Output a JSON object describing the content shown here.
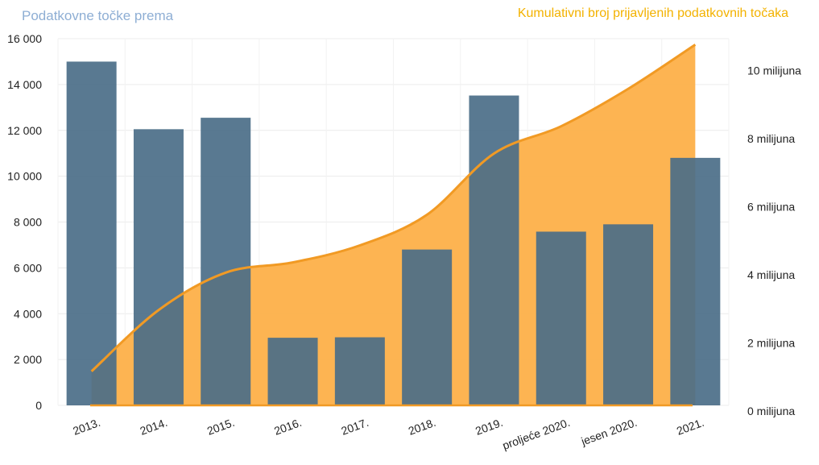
{
  "titles": {
    "left": "Podatkovne točke prema",
    "right": "Kumulativni broj prijavljenih podatkovnih točaka"
  },
  "colors": {
    "bar": "#4b6e88",
    "area": "#fdb049",
    "line": "#f19a24",
    "left_title": "#8eaed4",
    "right_title": "#f3b200"
  },
  "chart_data": {
    "type": "bar",
    "categories": [
      "2013.",
      "2014.",
      "2015.",
      "2016.",
      "2017.",
      "2018.",
      "2019.",
      "proljeće 2020.",
      "jesen 2020.",
      "2021."
    ],
    "series": [
      {
        "type": "bar",
        "axis": "left",
        "values": [
          15000,
          12050,
          12550,
          2950,
          2970,
          6800,
          13520,
          7580,
          7900,
          10800
        ]
      },
      {
        "type": "area",
        "axis": "right",
        "values": [
          1.0,
          2.8,
          3.9,
          4.2,
          4.7,
          5.6,
          7.4,
          8.2,
          9.3,
          10.6
        ]
      }
    ],
    "left_axis": {
      "ylim": [
        0,
        16000
      ],
      "ticks": [
        0,
        2000,
        4000,
        6000,
        8000,
        10000,
        12000,
        14000,
        16000
      ],
      "tick_labels": [
        "0",
        "2 000",
        "4 000",
        "6 000",
        "8 000",
        "10 000",
        "12 000",
        "14 000",
        "16 000"
      ]
    },
    "right_axis": {
      "ylim": [
        0,
        10.3
      ],
      "ticks": [
        0,
        2,
        4,
        6,
        8,
        10
      ],
      "tick_labels": [
        "0 milijuna",
        "2 milijuna",
        "4 milijuna",
        "6 milijuna",
        "8 milijuna",
        "10 milijuna"
      ]
    },
    "grid": true
  }
}
